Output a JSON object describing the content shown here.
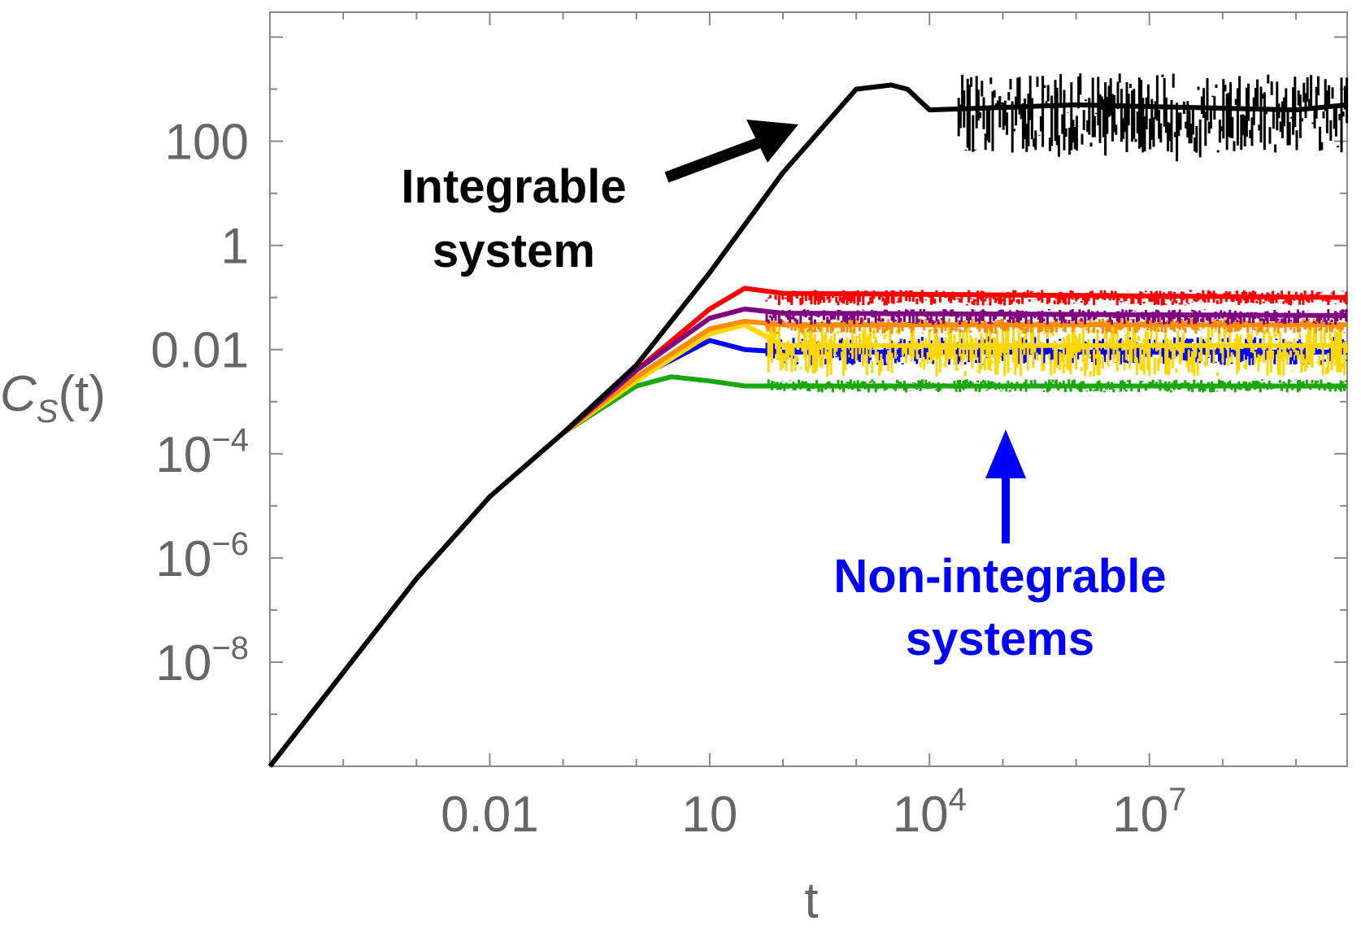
{
  "chart_data": {
    "type": "line",
    "title": "",
    "xlabel": "t",
    "ylabel": "C_S(t)",
    "ylabel_main": "C",
    "ylabel_sub": "S",
    "ylabel_tail": "(t)",
    "xscale": "log",
    "yscale": "log",
    "xlim": [
      1e-05,
      5000000000.0
    ],
    "ylim": [
      1e-10,
      30000
    ],
    "x_ticks": [
      {
        "value": 0.01,
        "base": "0.01",
        "exp": ""
      },
      {
        "value": 10,
        "base": "10",
        "exp": ""
      },
      {
        "value": 10000,
        "base": "10",
        "exp": "4"
      },
      {
        "value": 10000000,
        "base": "10",
        "exp": "7"
      }
    ],
    "y_ticks": [
      {
        "value": 100,
        "base": "100",
        "exp": ""
      },
      {
        "value": 1,
        "base": "1",
        "exp": ""
      },
      {
        "value": 0.01,
        "base": "0.01",
        "exp": ""
      },
      {
        "value": 0.0001,
        "base": "10",
        "exp": "−4"
      },
      {
        "value": 1e-06,
        "base": "10",
        "exp": "−6"
      },
      {
        "value": 1e-08,
        "base": "10",
        "exp": "−8"
      }
    ],
    "grid": false,
    "legend": "none",
    "series": [
      {
        "color": "#000000",
        "x": [
          1e-05,
          0.001,
          0.01,
          0.1,
          1,
          10,
          100,
          1000,
          3000,
          5000,
          10000,
          1000000,
          1000000000,
          5000000000
        ],
        "y": [
          1e-10,
          4e-07,
          1.5e-05,
          0.00025,
          0.005,
          0.3,
          25,
          1000,
          1200,
          1000,
          400,
          500,
          400,
          500
        ],
        "plateau_range": [
          60,
          2000
        ]
      },
      {
        "color": "#ff0000",
        "x": [
          0.1,
          1,
          10,
          30,
          100,
          5000000000
        ],
        "y": [
          0.00025,
          0.004,
          0.06,
          0.15,
          0.12,
          0.1
        ],
        "plateau_range": [
          0.07,
          0.14
        ]
      },
      {
        "color": "#800080",
        "x": [
          0.1,
          1,
          10,
          30,
          100,
          5000000000
        ],
        "y": [
          0.00025,
          0.004,
          0.04,
          0.06,
          0.05,
          0.045
        ],
        "plateau_range": [
          0.03,
          0.06
        ]
      },
      {
        "color": "#ffd700",
        "x": [
          0.1,
          1,
          10,
          30,
          100,
          5000000000
        ],
        "y": [
          0.00025,
          0.0025,
          0.02,
          0.03,
          0.012,
          0.012
        ],
        "plateau_range": [
          0.003,
          0.03
        ]
      },
      {
        "color": "#ff8c00",
        "x": [
          0.1,
          1,
          10,
          30,
          100,
          5000000000
        ],
        "y": [
          0.00025,
          0.003,
          0.025,
          0.035,
          0.03,
          0.03
        ],
        "plateau_range": [
          0.02,
          0.04
        ]
      },
      {
        "color": "#0000ff",
        "x": [
          0.1,
          1,
          10,
          30,
          100,
          5000000000
        ],
        "y": [
          0.00025,
          0.0028,
          0.015,
          0.01,
          0.009,
          0.009
        ],
        "plateau_range": [
          0.005,
          0.018
        ]
      },
      {
        "color": "#1aa80e",
        "x": [
          0.1,
          1,
          3,
          10,
          30,
          100,
          5000000000
        ],
        "y": [
          0.00025,
          0.002,
          0.003,
          0.0025,
          0.002,
          0.002,
          0.002
        ],
        "plateau_range": [
          0.0015,
          0.0027
        ]
      }
    ],
    "annotations": [
      {
        "lines": [
          "Integrable",
          "system"
        ],
        "color": "#000000"
      },
      {
        "lines": [
          "Non-integrable",
          "systems"
        ],
        "color": "#0000ff"
      }
    ]
  }
}
